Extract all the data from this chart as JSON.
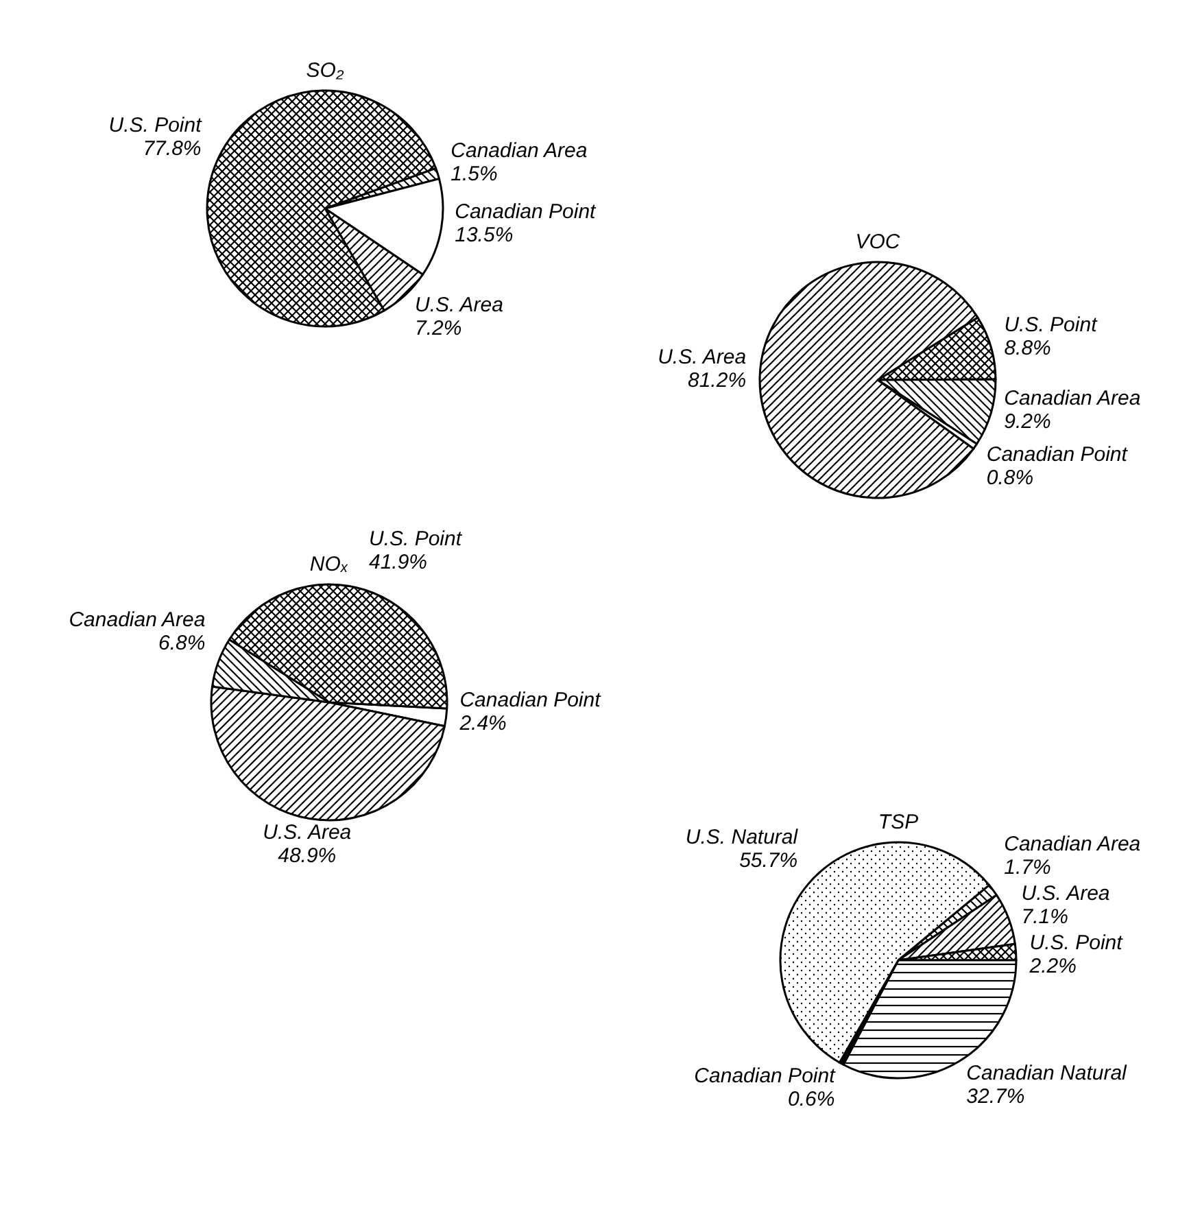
{
  "chart_data": [
    {
      "type": "pie",
      "title": "SO₂",
      "categories": [
        "Canadian Area",
        "Canadian Point",
        "U.S. Area",
        "U.S. Point"
      ],
      "values": [
        1.5,
        13.5,
        7.2,
        77.8
      ],
      "value_labels": [
        "1.5%",
        "13.5%",
        "7.2%",
        "77.8%"
      ],
      "colors": [
        "#000000",
        "#ffffff",
        "#000000",
        "#000000"
      ]
    },
    {
      "type": "pie",
      "title": "VOC",
      "categories": [
        "U.S. Point",
        "Canadian Area",
        "Canadian Point",
        "U.S. Area"
      ],
      "values": [
        8.8,
        9.2,
        0.8,
        81.2
      ],
      "value_labels": [
        "8.8%",
        "9.2%",
        "0.8%",
        "81.2%"
      ],
      "colors": [
        "#000000",
        "#000000",
        "#ffffff",
        "#000000"
      ]
    },
    {
      "type": "pie",
      "title": "NOₓ",
      "categories": [
        "Canadian Point",
        "U.S. Area",
        "Canadian Area",
        "U.S. Point"
      ],
      "values": [
        2.4,
        48.9,
        6.8,
        41.9
      ],
      "value_labels": [
        "2.4%",
        "48.9%",
        "6.8%",
        "41.9%"
      ],
      "colors": [
        "#ffffff",
        "#000000",
        "#000000",
        "#000000"
      ]
    },
    {
      "type": "pie",
      "title": "TSP",
      "categories": [
        "Canadian Area",
        "U.S. Area",
        "U.S. Point",
        "Canadian Natural",
        "Canadian Point",
        "U.S. Natural"
      ],
      "values": [
        1.7,
        7.1,
        2.2,
        32.7,
        0.6,
        55.7
      ],
      "value_labels": [
        "1.7%",
        "7.1%",
        "2.2%",
        "32.7%",
        "0.6%",
        "55.7%"
      ],
      "colors": [
        "#000000",
        "#000000",
        "#000000",
        "#000000",
        "#000000",
        "#000000"
      ]
    }
  ]
}
